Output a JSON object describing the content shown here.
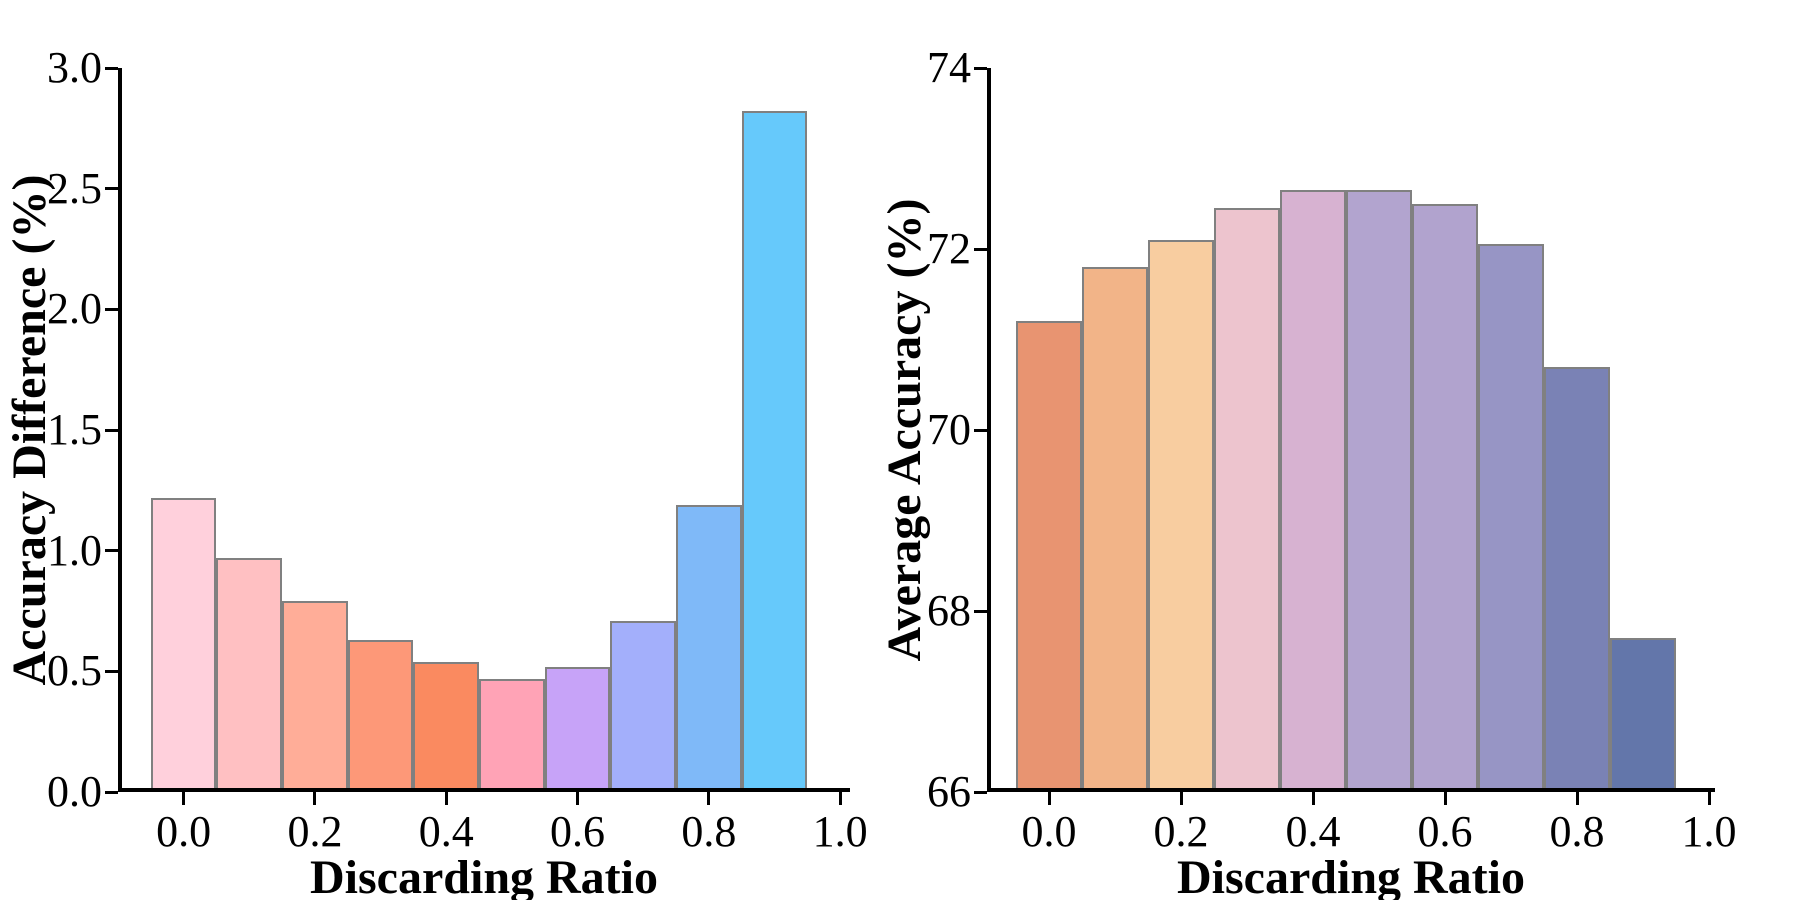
{
  "figure": {
    "background": "#ffffff",
    "axis_color": "#000000",
    "bar_edge_color": "#808080"
  },
  "chart_data": [
    {
      "type": "bar",
      "title": "",
      "xlabel": "Discarding Ratio",
      "ylabel": "Accuracy Difference (%)",
      "categories": [
        0.0,
        0.1,
        0.2,
        0.3,
        0.4,
        0.5,
        0.6,
        0.7,
        0.8,
        0.9
      ],
      "values": [
        1.22,
        0.97,
        0.79,
        0.63,
        0.54,
        0.47,
        0.52,
        0.71,
        1.19,
        2.82
      ],
      "bar_colors": [
        "#ffd0dc",
        "#ffc0c2",
        "#ffad98",
        "#fd9878",
        "#fa8a60",
        "#ffa3b6",
        "#c7a3f8",
        "#a3affb",
        "#7fb9f8",
        "#66c9fb"
      ],
      "bar_width": 0.1,
      "x_tick_labels": [
        "0.0",
        "0.2",
        "0.4",
        "0.6",
        "0.8",
        "1.0"
      ],
      "x_tick_values": [
        0.0,
        0.2,
        0.4,
        0.6,
        0.8,
        1.0
      ],
      "y_tick_labels": [
        "0.0",
        "0.5",
        "1.0",
        "1.5",
        "2.0",
        "2.5",
        "3.0"
      ],
      "y_tick_values": [
        0.0,
        0.5,
        1.0,
        1.5,
        2.0,
        2.5,
        3.0
      ],
      "xlim": [
        -0.1,
        1.015
      ],
      "ylim": [
        0.0,
        3.0
      ],
      "grid": false,
      "legend": null
    },
    {
      "type": "bar",
      "title": "",
      "xlabel": "Discarding Ratio",
      "ylabel": "Average Accuracy (%)",
      "categories": [
        0.0,
        0.1,
        0.2,
        0.3,
        0.4,
        0.5,
        0.6,
        0.7,
        0.8,
        0.9
      ],
      "values": [
        71.2,
        71.8,
        72.1,
        72.45,
        72.65,
        72.65,
        72.5,
        72.05,
        70.7,
        67.7
      ],
      "bar_colors": [
        "#e89471",
        "#f2b488",
        "#f8cda0",
        "#edc4ce",
        "#d7b2d1",
        "#b2a4cf",
        "#b1a3ce",
        "#9795c5",
        "#7a82b5",
        "#6376aa"
      ],
      "bar_width": 0.1,
      "x_tick_labels": [
        "0.0",
        "0.2",
        "0.4",
        "0.6",
        "0.8",
        "1.0"
      ],
      "x_tick_values": [
        0.0,
        0.2,
        0.4,
        0.6,
        0.8,
        1.0
      ],
      "y_tick_labels": [
        "66",
        "68",
        "70",
        "72",
        "74"
      ],
      "y_tick_values": [
        66,
        68,
        70,
        72,
        74
      ],
      "xlim": [
        -0.094,
        1.009
      ],
      "ylim": [
        66,
        74
      ],
      "grid": false,
      "legend": null
    }
  ]
}
